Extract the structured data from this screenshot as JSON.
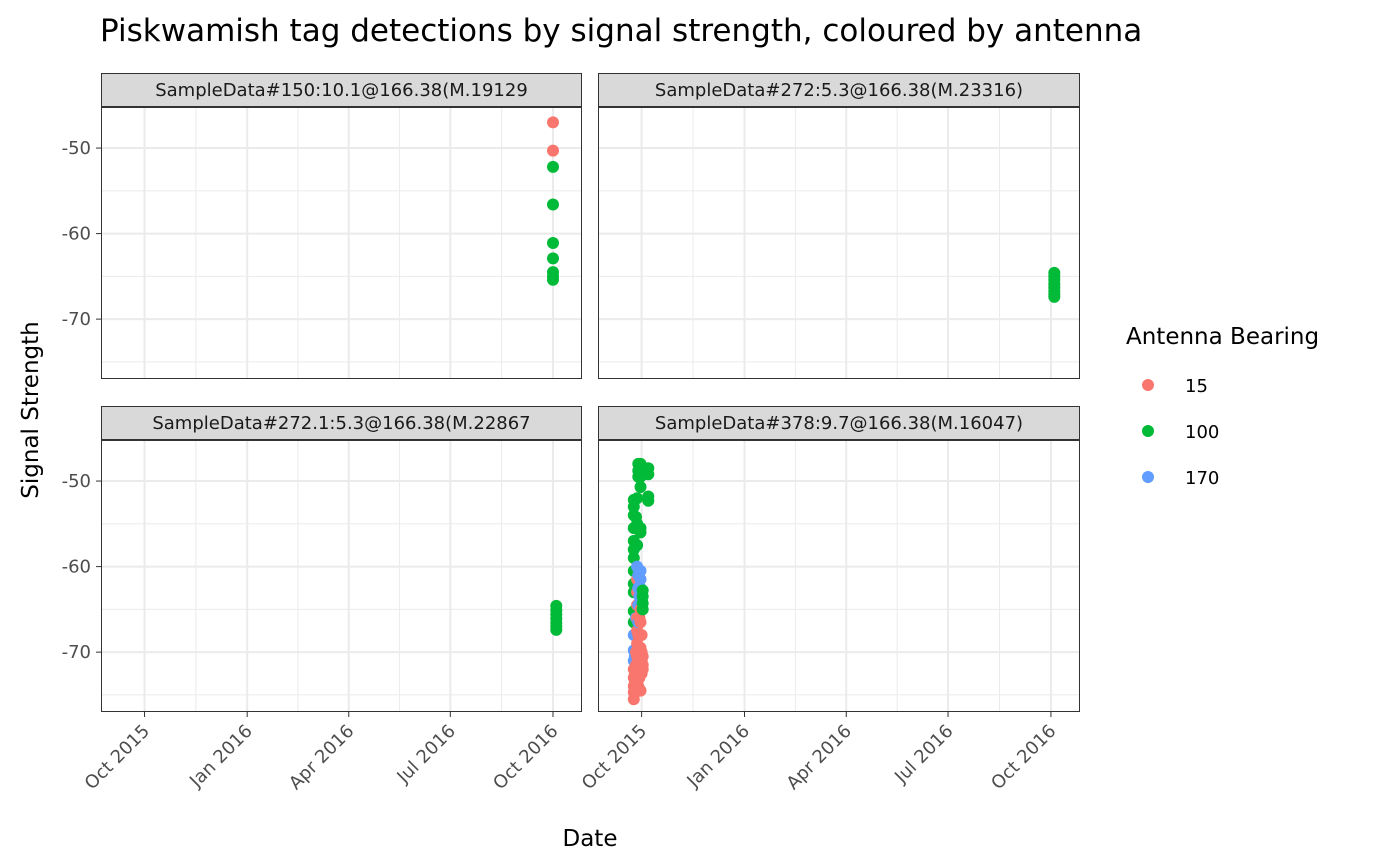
{
  "chart_data": {
    "type": "scatter",
    "title": "Piskwamish tag detections by signal strength, coloured by antenna",
    "xlabel": "Date",
    "ylabel": "Signal Strength",
    "x_ticks": [
      "Oct 2015",
      "Jan 2016",
      "Apr 2016",
      "Jul 2016",
      "Oct 2016"
    ],
    "x_tick_dates": [
      "2015-10-01",
      "2016-01-01",
      "2016-04-01",
      "2016-07-01",
      "2016-10-01"
    ],
    "xlim": [
      "2015-08-23",
      "2016-10-27"
    ],
    "y_ticks": [
      -50,
      -60,
      -70
    ],
    "ylim": [
      -77,
      -45.2
    ],
    "grid": true,
    "legend": {
      "title": "Antenna Bearing",
      "placement": "right",
      "entries": [
        {
          "label": "15",
          "color": "#F8766D"
        },
        {
          "label": "100",
          "color": "#00BA38"
        },
        {
          "label": "170",
          "color": "#619CFF"
        }
      ]
    },
    "panels": [
      {
        "label": "SampleData#150:10.1@166.38(M.19129",
        "points": [
          {
            "x": "2016-10-01",
            "y": -47.0,
            "antenna": "15"
          },
          {
            "x": "2016-10-01",
            "y": -50.3,
            "antenna": "15"
          },
          {
            "x": "2016-10-01",
            "y": -52.2,
            "antenna": "100"
          },
          {
            "x": "2016-10-01",
            "y": -56.6,
            "antenna": "100"
          },
          {
            "x": "2016-10-01",
            "y": -61.1,
            "antenna": "100"
          },
          {
            "x": "2016-10-01",
            "y": -62.9,
            "antenna": "100"
          },
          {
            "x": "2016-10-01",
            "y": -64.5,
            "antenna": "100"
          },
          {
            "x": "2016-10-01",
            "y": -65.0,
            "antenna": "100"
          },
          {
            "x": "2016-10-01",
            "y": -65.4,
            "antenna": "100"
          }
        ]
      },
      {
        "label": "SampleData#272:5.3@166.38(M.23316)",
        "points": [
          {
            "x": "2016-10-04",
            "y": -64.6,
            "antenna": "100"
          },
          {
            "x": "2016-10-04",
            "y": -65.0,
            "antenna": "100"
          },
          {
            "x": "2016-10-04",
            "y": -65.4,
            "antenna": "100"
          },
          {
            "x": "2016-10-04",
            "y": -65.9,
            "antenna": "100"
          },
          {
            "x": "2016-10-04",
            "y": -66.3,
            "antenna": "100"
          },
          {
            "x": "2016-10-04",
            "y": -66.7,
            "antenna": "100"
          },
          {
            "x": "2016-10-04",
            "y": -67.1,
            "antenna": "100"
          },
          {
            "x": "2016-10-04",
            "y": -67.4,
            "antenna": "100"
          }
        ]
      },
      {
        "label": "SampleData#272.1:5.3@166.38(M.22867",
        "points": [
          {
            "x": "2016-10-04",
            "y": -64.6,
            "antenna": "100"
          },
          {
            "x": "2016-10-04",
            "y": -65.1,
            "antenna": "100"
          },
          {
            "x": "2016-10-04",
            "y": -65.6,
            "antenna": "100"
          },
          {
            "x": "2016-10-04",
            "y": -66.1,
            "antenna": "100"
          },
          {
            "x": "2016-10-04",
            "y": -66.6,
            "antenna": "100"
          },
          {
            "x": "2016-10-04",
            "y": -67.0,
            "antenna": "100"
          },
          {
            "x": "2016-10-04",
            "y": -67.4,
            "antenna": "100"
          }
        ]
      },
      {
        "label": "SampleData#378:9.7@166.38(M.16047)",
        "points": [
          {
            "x": "2015-09-24",
            "y": -52.2,
            "antenna": "100"
          },
          {
            "x": "2015-09-24",
            "y": -53.0,
            "antenna": "100"
          },
          {
            "x": "2015-09-24",
            "y": -54.0,
            "antenna": "100"
          },
          {
            "x": "2015-09-24",
            "y": -55.5,
            "antenna": "100"
          },
          {
            "x": "2015-09-24",
            "y": -57.0,
            "antenna": "100"
          },
          {
            "x": "2015-09-24",
            "y": -58.0,
            "antenna": "100"
          },
          {
            "x": "2015-09-24",
            "y": -59.0,
            "antenna": "100"
          },
          {
            "x": "2015-09-24",
            "y": -60.5,
            "antenna": "100"
          },
          {
            "x": "2015-09-24",
            "y": -62.0,
            "antenna": "100"
          },
          {
            "x": "2015-09-24",
            "y": -63.0,
            "antenna": "100"
          },
          {
            "x": "2015-09-24",
            "y": -65.2,
            "antenna": "100"
          },
          {
            "x": "2015-09-24",
            "y": -66.5,
            "antenna": "100"
          },
          {
            "x": "2015-09-24",
            "y": -68.0,
            "antenna": "170"
          },
          {
            "x": "2015-09-24",
            "y": -69.8,
            "antenna": "170"
          },
          {
            "x": "2015-09-24",
            "y": -71.0,
            "antenna": "170"
          },
          {
            "x": "2015-09-24",
            "y": -72.0,
            "antenna": "15"
          },
          {
            "x": "2015-09-24",
            "y": -73.0,
            "antenna": "15"
          },
          {
            "x": "2015-09-24",
            "y": -74.0,
            "antenna": "15"
          },
          {
            "x": "2015-09-24",
            "y": -74.7,
            "antenna": "15"
          },
          {
            "x": "2015-09-24",
            "y": -75.5,
            "antenna": "15"
          },
          {
            "x": "2015-09-25",
            "y": -70.5,
            "antenna": "170"
          },
          {
            "x": "2015-09-25",
            "y": -72.5,
            "antenna": "15"
          },
          {
            "x": "2015-09-25",
            "y": -73.5,
            "antenna": "15"
          },
          {
            "x": "2015-09-26",
            "y": -54.2,
            "antenna": "100"
          },
          {
            "x": "2015-09-26",
            "y": -57.5,
            "antenna": "100"
          },
          {
            "x": "2015-09-26",
            "y": -66.0,
            "antenna": "170"
          },
          {
            "x": "2015-09-26",
            "y": -70.0,
            "antenna": "15"
          },
          {
            "x": "2015-09-26",
            "y": -71.5,
            "antenna": "15"
          },
          {
            "x": "2015-09-26",
            "y": -73.0,
            "antenna": "15"
          },
          {
            "x": "2015-09-26",
            "y": -74.5,
            "antenna": "15"
          },
          {
            "x": "2015-09-27",
            "y": -52.0,
            "antenna": "100"
          },
          {
            "x": "2015-09-27",
            "y": -55.0,
            "antenna": "100"
          },
          {
            "x": "2015-09-27",
            "y": -57.5,
            "antenna": "100"
          },
          {
            "x": "2015-09-27",
            "y": -60.0,
            "antenna": "170"
          },
          {
            "x": "2015-09-27",
            "y": -61.5,
            "antenna": "15"
          },
          {
            "x": "2015-09-27",
            "y": -63.0,
            "antenna": "15"
          },
          {
            "x": "2015-09-27",
            "y": -64.5,
            "antenna": "15"
          },
          {
            "x": "2015-09-27",
            "y": -66.0,
            "antenna": "15"
          },
          {
            "x": "2015-09-27",
            "y": -67.5,
            "antenna": "15"
          },
          {
            "x": "2015-09-27",
            "y": -69.0,
            "antenna": "15"
          },
          {
            "x": "2015-09-27",
            "y": -70.5,
            "antenna": "15"
          },
          {
            "x": "2015-09-27",
            "y": -72.0,
            "antenna": "15"
          },
          {
            "x": "2015-09-27",
            "y": -73.5,
            "antenna": "15"
          },
          {
            "x": "2015-09-28",
            "y": -48.0,
            "antenna": "100"
          },
          {
            "x": "2015-09-28",
            "y": -48.8,
            "antenna": "100"
          },
          {
            "x": "2015-09-28",
            "y": -49.5,
            "antenna": "100"
          },
          {
            "x": "2015-09-28",
            "y": -61.0,
            "antenna": "170"
          },
          {
            "x": "2015-09-28",
            "y": -62.5,
            "antenna": "170"
          },
          {
            "x": "2015-09-28",
            "y": -64.5,
            "antenna": "170"
          },
          {
            "x": "2015-09-28",
            "y": -66.5,
            "antenna": "170"
          },
          {
            "x": "2015-09-28",
            "y": -68.0,
            "antenna": "15"
          },
          {
            "x": "2015-09-28",
            "y": -69.5,
            "antenna": "15"
          },
          {
            "x": "2015-09-28",
            "y": -71.0,
            "antenna": "15"
          },
          {
            "x": "2015-09-28",
            "y": -72.5,
            "antenna": "15"
          },
          {
            "x": "2015-09-28",
            "y": -74.0,
            "antenna": "15"
          },
          {
            "x": "2015-09-29",
            "y": -60.5,
            "antenna": "170"
          },
          {
            "x": "2015-09-29",
            "y": -63.5,
            "antenna": "170"
          },
          {
            "x": "2015-09-29",
            "y": -66.0,
            "antenna": "15"
          },
          {
            "x": "2015-09-29",
            "y": -68.0,
            "antenna": "15"
          },
          {
            "x": "2015-09-29",
            "y": -70.0,
            "antenna": "15"
          },
          {
            "x": "2015-09-29",
            "y": -71.5,
            "antenna": "15"
          },
          {
            "x": "2015-09-29",
            "y": -73.0,
            "antenna": "15"
          },
          {
            "x": "2015-09-29",
            "y": -74.5,
            "antenna": "15"
          },
          {
            "x": "2015-09-30",
            "y": -48.0,
            "antenna": "100"
          },
          {
            "x": "2015-09-30",
            "y": -48.7,
            "antenna": "100"
          },
          {
            "x": "2015-09-30",
            "y": -49.5,
            "antenna": "100"
          },
          {
            "x": "2015-09-30",
            "y": -50.7,
            "antenna": "100"
          },
          {
            "x": "2015-09-30",
            "y": -55.5,
            "antenna": "100"
          },
          {
            "x": "2015-09-30",
            "y": -56.0,
            "antenna": "100"
          },
          {
            "x": "2015-09-30",
            "y": -60.5,
            "antenna": "170"
          },
          {
            "x": "2015-09-30",
            "y": -61.5,
            "antenna": "170"
          },
          {
            "x": "2015-09-30",
            "y": -62.5,
            "antenna": "170"
          },
          {
            "x": "2015-09-30",
            "y": -63.5,
            "antenna": "170"
          },
          {
            "x": "2015-09-30",
            "y": -65.0,
            "antenna": "15"
          },
          {
            "x": "2015-09-30",
            "y": -66.5,
            "antenna": "15"
          },
          {
            "x": "2015-09-30",
            "y": -68.0,
            "antenna": "15"
          },
          {
            "x": "2015-09-30",
            "y": -69.5,
            "antenna": "15"
          },
          {
            "x": "2015-09-30",
            "y": -71.0,
            "antenna": "15"
          },
          {
            "x": "2015-09-30",
            "y": -72.5,
            "antenna": "15"
          },
          {
            "x": "2015-09-30",
            "y": -74.5,
            "antenna": "15"
          },
          {
            "x": "2015-10-01",
            "y": -68.0,
            "antenna": "15"
          },
          {
            "x": "2015-10-01",
            "y": -70.0,
            "antenna": "15"
          },
          {
            "x": "2015-10-01",
            "y": -71.0,
            "antenna": "15"
          },
          {
            "x": "2015-10-01",
            "y": -72.5,
            "antenna": "15"
          },
          {
            "x": "2015-10-02",
            "y": -62.8,
            "antenna": "100"
          },
          {
            "x": "2015-10-02",
            "y": -63.5,
            "antenna": "100"
          },
          {
            "x": "2015-10-02",
            "y": -64.3,
            "antenna": "100"
          },
          {
            "x": "2015-10-02",
            "y": -65.0,
            "antenna": "100"
          },
          {
            "x": "2015-10-02",
            "y": -70.5,
            "antenna": "15"
          },
          {
            "x": "2015-10-02",
            "y": -71.5,
            "antenna": "15"
          },
          {
            "x": "2015-10-02",
            "y": -72.0,
            "antenna": "15"
          },
          {
            "x": "2015-10-07",
            "y": -48.5,
            "antenna": "100"
          },
          {
            "x": "2015-10-07",
            "y": -49.2,
            "antenna": "100"
          },
          {
            "x": "2015-10-07",
            "y": -51.8,
            "antenna": "100"
          },
          {
            "x": "2015-10-07",
            "y": -52.3,
            "antenna": "100"
          }
        ]
      }
    ]
  }
}
